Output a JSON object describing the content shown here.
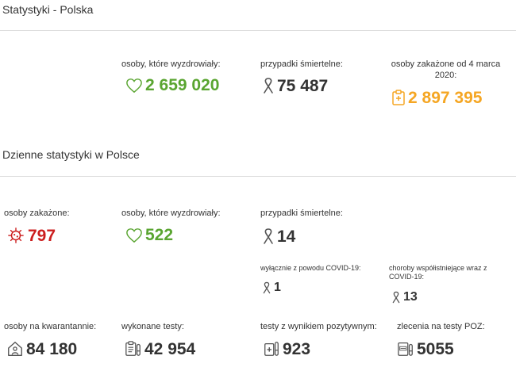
{
  "colors": {
    "green": "#5aa531",
    "orange": "#f5a623",
    "red": "#cc1f1f",
    "dark": "#333333",
    "gray_icon": "#666666"
  },
  "section_poland": {
    "title": "Statystyki - Polska",
    "recovered": {
      "label": "osoby, które wyzdrowiały:",
      "value": "2 659 020",
      "icon": "heart-icon"
    },
    "deaths": {
      "label": "przypadki śmiertelne:",
      "value": "75 487",
      "icon": "ribbon-icon"
    },
    "infected_total": {
      "label": "osoby zakażone od 4 marca 2020:",
      "value": "2 897 395",
      "icon": "clipboard-medical-icon"
    }
  },
  "section_daily": {
    "title": "Dzienne statystyki w Polsce",
    "infected": {
      "label": "osoby zakażone:",
      "value": "797",
      "icon": "virus-icon"
    },
    "recovered": {
      "label": "osoby, które wyzdrowiały:",
      "value": "522",
      "icon": "heart-icon"
    },
    "deaths": {
      "label": "przypadki śmiertelne:",
      "value": "14",
      "icon": "ribbon-icon"
    },
    "deaths_covid_only": {
      "label": "wyłącznie z powodu COVID-19:",
      "value": "1",
      "icon": "ribbon-icon"
    },
    "deaths_comorbid": {
      "label": "choroby współistniejące wraz z COVID-19:",
      "value": "13",
      "icon": "ribbon-icon"
    },
    "quarantine": {
      "label": "osoby na kwarantannie:",
      "value": "84 180",
      "icon": "house-person-icon"
    },
    "tests_done": {
      "label": "wykonane testy:",
      "value": "42 954",
      "icon": "clipboard-test-tube-icon"
    },
    "tests_positive": {
      "label": "testy z wynikiem pozytywnym:",
      "value": "923",
      "icon": "test-positive-icon"
    },
    "poz_orders": {
      "label": "zlecenia na testy POZ:",
      "value": "5055",
      "icon": "poz-test-icon"
    }
  }
}
